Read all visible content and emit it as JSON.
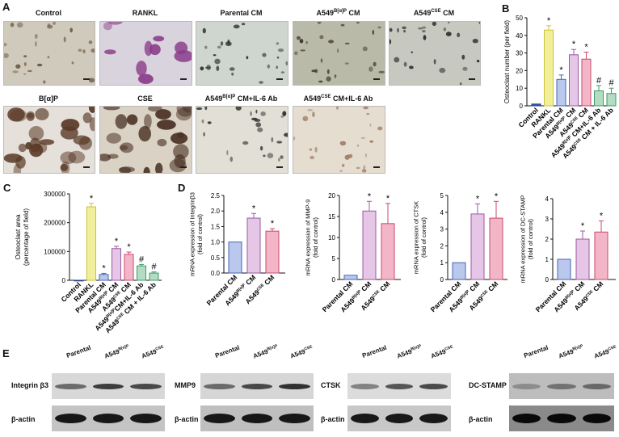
{
  "panels": {
    "A": "A",
    "B": "B",
    "C": "C",
    "D": "D",
    "E": "E"
  },
  "micrographs": [
    {
      "id": "control",
      "label": "Control",
      "sup": "",
      "tail": "",
      "bg": "#cfcabb",
      "cell": "#6b5540"
    },
    {
      "id": "rankl",
      "label": "RANKL",
      "sup": "",
      "tail": "",
      "bg": "#d9d3dd",
      "cell": "#8b3d8a"
    },
    {
      "id": "parental",
      "label": "Parental CM",
      "sup": "",
      "tail": "",
      "bg": "#cfd6cf",
      "cell": "#2b2b2b"
    },
    {
      "id": "bap-cm",
      "label": "A549",
      "sup": "B[α]P",
      "tail": " CM",
      "bg": "#b9bba8",
      "cell": "#3a2f2a"
    },
    {
      "id": "cse-cm",
      "label": "A549",
      "sup": "CSE",
      "tail": " CM",
      "bg": "#c7c8c0",
      "cell": "#2a2a2a"
    },
    {
      "id": "bap",
      "label": "B[α]P",
      "sup": "",
      "tail": "",
      "bg": "#e5e0d9",
      "cell": "#5a3a28"
    },
    {
      "id": "cse",
      "label": "CSE",
      "sup": "",
      "tail": "",
      "bg": "#dad2c4",
      "cell": "#4a3225"
    },
    {
      "id": "bap-il6",
      "label": "A549",
      "sup": "B[α]P",
      "tail": " CM+IL-6 Ab",
      "bg": "#e2e0d6",
      "cell": "#2e2e2e"
    },
    {
      "id": "cse-il6",
      "label": "A549",
      "sup": "CSE",
      "tail": " CM+IL-6 Ab",
      "bg": "#e6ddd1",
      "cell": "#a0806a"
    }
  ],
  "chart_data": [
    {
      "id": "B",
      "type": "bar",
      "ylabel": "Osteoclast number (per field)",
      "ylim": [
        0,
        50
      ],
      "yticks": [
        0,
        10,
        20,
        30,
        40,
        50
      ],
      "categories": [
        "Control",
        "RANKL",
        "Parental CM",
        "A549B[α]P CM",
        "A549CSE CM",
        "A549B[α]P CM+IL-6 Ab",
        "A549CSE CM + IL-6 Ab"
      ],
      "category_labels": [
        {
          "main": "Control",
          "sup": "",
          "tail": ""
        },
        {
          "main": "RANKL",
          "sup": "",
          "tail": ""
        },
        {
          "main": "Parental CM",
          "sup": "",
          "tail": ""
        },
        {
          "main": "A549",
          "sup": "B[α]P",
          "tail": " CM"
        },
        {
          "main": "A549",
          "sup": "CSE",
          "tail": " CM"
        },
        {
          "main": "A549",
          "sup": "B[α]P",
          "tail": " CM+IL-6 Ab"
        },
        {
          "main": "A549",
          "sup": "CSE",
          "tail": " CM + IL-6 Ab"
        }
      ],
      "values": [
        1,
        43,
        15,
        29,
        26.5,
        8.5,
        7
      ],
      "errors": [
        0,
        2.5,
        2.5,
        3,
        4,
        3,
        3
      ],
      "marks": [
        "",
        "*",
        "*",
        "*",
        "*",
        "#",
        "#"
      ],
      "colors": [
        "#3b5aa8",
        "#f2ef9a",
        "#b9c8ec",
        "#e6c6e6",
        "#f3b6c8",
        "#b3dcc3",
        "#b3dcc3"
      ],
      "edges": [
        "#1f3a8a",
        "#c9c23a",
        "#4a63b8",
        "#9b5aa0",
        "#c84a6a",
        "#3c9a6a",
        "#3c9a6a"
      ],
      "grid": false
    },
    {
      "id": "C",
      "type": "bar",
      "ylabel": "Osteoclast area\n(percentage of field)",
      "ylabel_lines": [
        "Osteoclast area",
        "(percentage of field)"
      ],
      "ylim": [
        0,
        300000
      ],
      "yticks": [
        0,
        100000,
        200000,
        300000
      ],
      "ytick_labels": [
        "0",
        "100000",
        "200000",
        "300000"
      ],
      "categories": [
        "Control",
        "RANKL",
        "Parental CM",
        "A549B[α]P CM",
        "A549CSE CM",
        "A549B[α]P CM+IL-6 Ab",
        "A549CSE CM + IL-6 Ab"
      ],
      "category_labels": [
        {
          "main": "Control",
          "sup": "",
          "tail": ""
        },
        {
          "main": "RANKL",
          "sup": "",
          "tail": ""
        },
        {
          "main": "Parental CM",
          "sup": "",
          "tail": ""
        },
        {
          "main": "A549",
          "sup": "B[α]P",
          "tail": " CM"
        },
        {
          "main": "A549",
          "sup": "CSE",
          "tail": " CM"
        },
        {
          "main": "A549",
          "sup": "B[α]P",
          "tail": "CM+IL-6 Ab"
        },
        {
          "main": "A549",
          "sup": "CSE",
          "tail": " CM + IL-6 Ab"
        }
      ],
      "values": [
        0,
        255000,
        20000,
        110000,
        90000,
        50000,
        25000
      ],
      "errors": [
        0,
        12000,
        4000,
        8000,
        8000,
        5000,
        4000
      ],
      "marks": [
        "",
        "*",
        "*",
        "*",
        "*",
        "#",
        "#"
      ],
      "colors": [
        "#3b5aa8",
        "#f2ef9a",
        "#b9c8ec",
        "#e6c6e6",
        "#f3b6c8",
        "#b3dcc3",
        "#b3dcc3"
      ],
      "edges": [
        "#1f3a8a",
        "#c9c23a",
        "#4a63b8",
        "#9b5aa0",
        "#c84a6a",
        "#3c9a6a",
        "#3c9a6a"
      ],
      "grid": false
    },
    {
      "id": "D1",
      "type": "bar",
      "ylabel_lines": [
        "mRNA expression of Integrinβ3",
        "(fold of control)"
      ],
      "ylim": [
        0,
        2.5
      ],
      "yticks": [
        0,
        0.5,
        1.0,
        1.5,
        2.0,
        2.5
      ],
      "ytick_labels": [
        "0.0",
        "0.5",
        "1.0",
        "1.5",
        "2.0",
        "2.5"
      ],
      "category_labels": [
        {
          "main": "Parental CM",
          "sup": "",
          "tail": ""
        },
        {
          "main": "A549",
          "sup": "B[α]P",
          "tail": " CM"
        },
        {
          "main": "A549",
          "sup": "CSE",
          "tail": " CM"
        }
      ],
      "values": [
        1.0,
        1.77,
        1.35
      ],
      "errors": [
        0,
        0.15,
        0.08
      ],
      "marks": [
        "",
        "*",
        "*"
      ],
      "colors": [
        "#b9c8ec",
        "#e6c6e6",
        "#f3b6c8"
      ],
      "edges": [
        "#4a63b8",
        "#9b5aa0",
        "#c84a6a"
      ],
      "grid": false
    },
    {
      "id": "D2",
      "type": "bar",
      "ylabel_lines": [
        "mRNA expression of MMP-9",
        "(fold of control)"
      ],
      "ylim": [
        0,
        20
      ],
      "yticks": [
        0,
        5,
        10,
        15,
        20
      ],
      "ytick_labels": [
        "0",
        "5",
        "10",
        "15",
        "20"
      ],
      "category_labels": [
        {
          "main": "Parental CM",
          "sup": "",
          "tail": ""
        },
        {
          "main": "A549",
          "sup": "B[α]P",
          "tail": " CM"
        },
        {
          "main": "A549",
          "sup": "CSE",
          "tail": " CM"
        }
      ],
      "values": [
        1.0,
        16.3,
        13.3
      ],
      "errors": [
        0,
        2.3,
        4.8
      ],
      "marks": [
        "",
        "*",
        "*"
      ],
      "colors": [
        "#b9c8ec",
        "#e6c6e6",
        "#f3b6c8"
      ],
      "edges": [
        "#4a63b8",
        "#9b5aa0",
        "#c84a6a"
      ],
      "grid": false
    },
    {
      "id": "D3",
      "type": "bar",
      "ylabel_lines": [
        "mRNA expression of CTSK",
        "(fold of control)"
      ],
      "ylim": [
        0,
        5
      ],
      "yticks": [
        0,
        1,
        2,
        3,
        4,
        5
      ],
      "ytick_labels": [
        "0",
        "1",
        "2",
        "3",
        "4",
        "5"
      ],
      "category_labels": [
        {
          "main": "Parental CM",
          "sup": "",
          "tail": ""
        },
        {
          "main": "A549",
          "sup": "B[α]P",
          "tail": " CM"
        },
        {
          "main": "A549",
          "sup": "CSE",
          "tail": " CM"
        }
      ],
      "values": [
        1.0,
        3.9,
        3.65
      ],
      "errors": [
        0,
        0.6,
        1.0
      ],
      "marks": [
        "",
        "*",
        "*"
      ],
      "colors": [
        "#b9c8ec",
        "#e6c6e6",
        "#f3b6c8"
      ],
      "edges": [
        "#4a63b8",
        "#9b5aa0",
        "#c84a6a"
      ],
      "grid": false
    },
    {
      "id": "D4",
      "type": "bar",
      "ylabel_lines": [
        "mRNA expression of DC-STAMP",
        "(fold of control)"
      ],
      "ylim": [
        0,
        4
      ],
      "yticks": [
        0,
        1,
        2,
        3,
        4
      ],
      "ytick_labels": [
        "0",
        "1",
        "2",
        "3",
        "4"
      ],
      "category_labels": [
        {
          "main": "Parental CM",
          "sup": "",
          "tail": ""
        },
        {
          "main": "A549",
          "sup": "B[α]P",
          "tail": " CM"
        },
        {
          "main": "A549",
          "sup": "CSE",
          "tail": " CM"
        }
      ],
      "values": [
        1.0,
        2.0,
        2.35
      ],
      "errors": [
        0,
        0.4,
        0.55
      ],
      "marks": [
        "",
        "*",
        "*"
      ],
      "colors": [
        "#b9c8ec",
        "#e6c6e6",
        "#f3b6c8"
      ],
      "edges": [
        "#4a63b8",
        "#9b5aa0",
        "#c84a6a"
      ],
      "grid": false
    }
  ],
  "blots": [
    {
      "id": "integrin",
      "target": "Integrin β3",
      "loading": "β-actin",
      "target_intensity": [
        0.55,
        0.75,
        0.7
      ],
      "actin_intensity": [
        0.9,
        0.9,
        0.9
      ],
      "bg": "#d8d8d8",
      "actin_bg": "#c4c4c4"
    },
    {
      "id": "mmp9",
      "target": "MMP9",
      "loading": "β-actin",
      "target_intensity": [
        0.55,
        0.7,
        0.8
      ],
      "actin_intensity": [
        0.9,
        0.9,
        0.9
      ],
      "bg": "#d6d6d6",
      "actin_bg": "#bfbfbf"
    },
    {
      "id": "ctsk",
      "target": "CTSK",
      "loading": "β-actin",
      "target_intensity": [
        0.45,
        0.65,
        0.7
      ],
      "actin_intensity": [
        0.9,
        0.9,
        0.9
      ],
      "bg": "#dcdcdc",
      "actin_bg": "#c8c8c8"
    },
    {
      "id": "dcstamp",
      "target": "DC-STAMP",
      "loading": "β-actin",
      "target_intensity": [
        0.3,
        0.45,
        0.5
      ],
      "actin_intensity": [
        0.95,
        0.95,
        0.95
      ],
      "bg": "#bdbdbd",
      "actin_bg": "#8a8a8a"
    }
  ],
  "blot_lanes": [
    {
      "main": "Parental",
      "sup": ""
    },
    {
      "main": "A549",
      "sup": "B[α]P"
    },
    {
      "main": "A549",
      "sup": "CSE"
    }
  ]
}
